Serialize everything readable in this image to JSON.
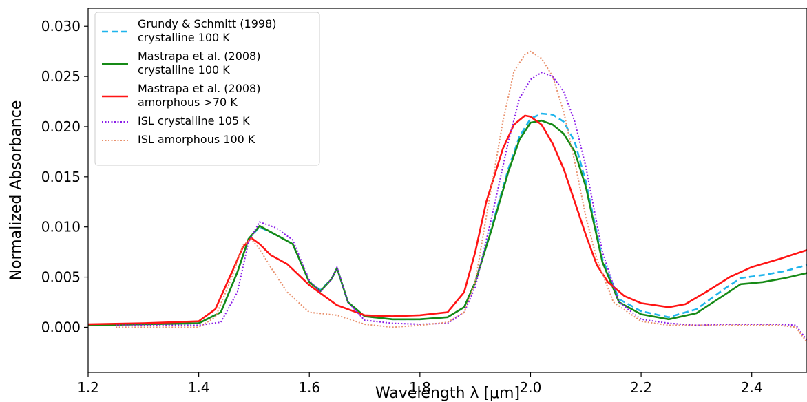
{
  "chart_data": {
    "type": "line",
    "xlabel": "Wavelength λ [μm]",
    "ylabel": "Normalized Absorbance",
    "xlim": [
      1.2,
      2.5
    ],
    "ylim": [
      -0.0045,
      0.0318
    ],
    "xticks": [
      1.2,
      1.4,
      1.6,
      1.8,
      2.0,
      2.2,
      2.4
    ],
    "xtick_labels": [
      "1.2",
      "1.4",
      "1.6",
      "1.8",
      "2.0",
      "2.2",
      "2.4"
    ],
    "yticks": [
      0.0,
      0.005,
      0.01,
      0.015,
      0.02,
      0.025,
      0.03
    ],
    "ytick_labels": [
      "0.000",
      "0.005",
      "0.010",
      "0.015",
      "0.020",
      "0.025",
      "0.030"
    ],
    "grid": false,
    "legend_position": "top-left",
    "series": [
      {
        "name": "Grundy & Schmitt (1998)\ncrystalline 100 K",
        "style": "dashed",
        "color": "#1fb4ec",
        "x": [
          1.2,
          1.3,
          1.4,
          1.44,
          1.47,
          1.49,
          1.51,
          1.54,
          1.57,
          1.6,
          1.62,
          1.64,
          1.65,
          1.67,
          1.7,
          1.75,
          1.8,
          1.85,
          1.88,
          1.9,
          1.93,
          1.96,
          1.98,
          2.0,
          2.02,
          2.04,
          2.06,
          2.08,
          2.1,
          2.13,
          2.16,
          2.2,
          2.25,
          2.3,
          2.35,
          2.38,
          2.42,
          2.46,
          2.5
        ],
        "y": [
          0.0002,
          0.0003,
          0.0004,
          0.0015,
          0.0055,
          0.0088,
          0.01,
          0.0092,
          0.0083,
          0.0045,
          0.0037,
          0.0048,
          0.0059,
          0.0025,
          0.0011,
          0.0008,
          0.0008,
          0.001,
          0.002,
          0.0045,
          0.01,
          0.0158,
          0.019,
          0.0208,
          0.0213,
          0.0212,
          0.0205,
          0.0185,
          0.0145,
          0.0068,
          0.0028,
          0.0016,
          0.001,
          0.0018,
          0.0038,
          0.0049,
          0.0052,
          0.0056,
          0.0062
        ]
      },
      {
        "name": "Mastrapa et al. (2008)\ncrystalline 100 K",
        "style": "solid",
        "color": "#168a16",
        "x": [
          1.2,
          1.3,
          1.4,
          1.44,
          1.47,
          1.49,
          1.51,
          1.54,
          1.57,
          1.6,
          1.62,
          1.64,
          1.65,
          1.67,
          1.7,
          1.75,
          1.8,
          1.85,
          1.88,
          1.9,
          1.93,
          1.96,
          1.98,
          2.0,
          2.02,
          2.04,
          2.06,
          2.08,
          2.1,
          2.13,
          2.16,
          2.2,
          2.25,
          2.3,
          2.35,
          2.38,
          2.42,
          2.46,
          2.5
        ],
        "y": [
          0.0002,
          0.0003,
          0.0004,
          0.0015,
          0.0055,
          0.0088,
          0.0101,
          0.0092,
          0.0083,
          0.0045,
          0.0036,
          0.0048,
          0.0059,
          0.0025,
          0.0011,
          0.0008,
          0.0008,
          0.001,
          0.002,
          0.0045,
          0.0098,
          0.0155,
          0.0187,
          0.0204,
          0.0206,
          0.0202,
          0.0193,
          0.0175,
          0.014,
          0.0065,
          0.0025,
          0.0013,
          0.0008,
          0.0014,
          0.0032,
          0.0043,
          0.0045,
          0.0049,
          0.0054
        ]
      },
      {
        "name": "Mastrapa et al. (2008)\namorphous >70 K",
        "style": "solid",
        "color": "#ff1414",
        "x": [
          1.2,
          1.3,
          1.4,
          1.43,
          1.46,
          1.48,
          1.495,
          1.51,
          1.53,
          1.56,
          1.6,
          1.65,
          1.7,
          1.75,
          1.8,
          1.85,
          1.88,
          1.9,
          1.92,
          1.95,
          1.97,
          1.99,
          2.0,
          2.02,
          2.04,
          2.06,
          2.08,
          2.1,
          2.12,
          2.14,
          2.17,
          2.2,
          2.25,
          2.28,
          2.32,
          2.36,
          2.4,
          2.45,
          2.5
        ],
        "y": [
          0.0003,
          0.0004,
          0.0006,
          0.0018,
          0.0055,
          0.008,
          0.0089,
          0.0083,
          0.0072,
          0.0063,
          0.0042,
          0.0022,
          0.0012,
          0.0011,
          0.0012,
          0.0015,
          0.0035,
          0.0075,
          0.0125,
          0.0178,
          0.0202,
          0.0211,
          0.021,
          0.0202,
          0.0183,
          0.0158,
          0.0125,
          0.0092,
          0.0062,
          0.0045,
          0.0031,
          0.0024,
          0.002,
          0.0023,
          0.0036,
          0.005,
          0.006,
          0.0068,
          0.0077
        ]
      },
      {
        "name": "ISL crystalline 105 K",
        "style": "dotted",
        "color": "#8a1de8",
        "x": [
          1.25,
          1.3,
          1.35,
          1.4,
          1.44,
          1.47,
          1.49,
          1.51,
          1.54,
          1.57,
          1.6,
          1.62,
          1.64,
          1.65,
          1.67,
          1.7,
          1.75,
          1.8,
          1.85,
          1.88,
          1.9,
          1.93,
          1.96,
          1.98,
          2.0,
          2.02,
          2.04,
          2.06,
          2.08,
          2.1,
          2.13,
          2.16,
          2.2,
          2.25,
          2.3,
          2.35,
          2.4,
          2.45,
          2.48,
          2.5
        ],
        "y": [
          0.0002,
          0.0002,
          0.0002,
          0.0002,
          0.0005,
          0.0035,
          0.0085,
          0.0105,
          0.0099,
          0.0087,
          0.0047,
          0.0035,
          0.0048,
          0.006,
          0.0025,
          0.0007,
          0.0004,
          0.0003,
          0.0004,
          0.0015,
          0.004,
          0.011,
          0.0185,
          0.0228,
          0.0247,
          0.0254,
          0.025,
          0.0235,
          0.0205,
          0.016,
          0.0075,
          0.0025,
          0.0008,
          0.0004,
          0.0002,
          0.0003,
          0.0003,
          0.0003,
          0.0002,
          -0.0013
        ]
      },
      {
        "name": "ISL amorphous 100 K",
        "style": "dotted",
        "color": "#e8906c",
        "x": [
          1.25,
          1.3,
          1.35,
          1.4,
          1.43,
          1.46,
          1.48,
          1.495,
          1.51,
          1.53,
          1.56,
          1.6,
          1.65,
          1.7,
          1.75,
          1.8,
          1.85,
          1.88,
          1.9,
          1.92,
          1.95,
          1.97,
          1.99,
          2.0,
          2.02,
          2.04,
          2.06,
          2.08,
          2.1,
          2.12,
          2.15,
          2.2,
          2.25,
          2.3,
          2.35,
          2.4,
          2.45,
          2.48,
          2.5
        ],
        "y": [
          0.0,
          0.0,
          0.0,
          0.0,
          0.001,
          0.005,
          0.0082,
          0.0088,
          0.0078,
          0.006,
          0.0035,
          0.0015,
          0.0012,
          0.0003,
          0.0,
          0.0002,
          0.0005,
          0.0015,
          0.0045,
          0.011,
          0.0205,
          0.0255,
          0.0272,
          0.0275,
          0.0268,
          0.025,
          0.0215,
          0.0165,
          0.011,
          0.0068,
          0.0025,
          0.0006,
          0.0002,
          0.0002,
          0.0002,
          0.0002,
          0.0002,
          0.0,
          -0.0015
        ]
      }
    ]
  }
}
